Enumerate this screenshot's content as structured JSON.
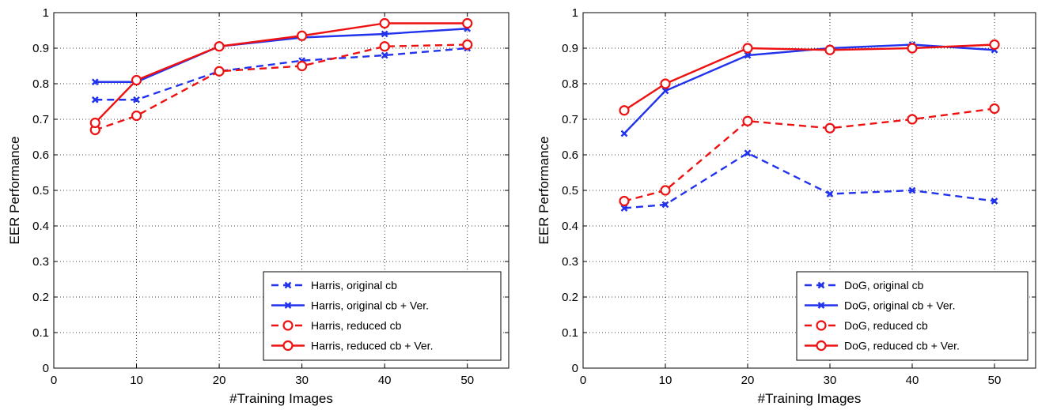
{
  "chart_data": [
    {
      "type": "line",
      "title": "",
      "xlabel": "#Training Images",
      "ylabel": "EER Performance",
      "xlim": [
        0,
        55
      ],
      "ylim": [
        0,
        1
      ],
      "xticks": [
        0,
        10,
        20,
        30,
        40,
        50
      ],
      "yticks": [
        0,
        0.1,
        0.2,
        0.3,
        0.4,
        0.5,
        0.6,
        0.7,
        0.8,
        0.9,
        1
      ],
      "ytick_labels": [
        "0",
        "0.1",
        "0.2",
        "0.3",
        "0.4",
        "0.5",
        "0.6",
        "0.7",
        "0.8",
        "0.9",
        "1"
      ],
      "grid": true,
      "legend_position": "bottom-right",
      "x": [
        5,
        10,
        20,
        30,
        40,
        50
      ],
      "series": [
        {
          "name": "Harris, original cb",
          "values": [
            0.755,
            0.755,
            0.835,
            0.865,
            0.88,
            0.9
          ],
          "color": "#2233ee",
          "dash": true,
          "marker": "x"
        },
        {
          "name": "Harris, original cb + Ver.",
          "values": [
            0.805,
            0.805,
            0.905,
            0.93,
            0.94,
            0.955
          ],
          "color": "#2233ee",
          "dash": false,
          "marker": "x"
        },
        {
          "name": "Harris, reduced cb",
          "values": [
            0.67,
            0.71,
            0.835,
            0.85,
            0.905,
            0.91
          ],
          "color": "#ee1111",
          "dash": true,
          "marker": "o"
        },
        {
          "name": "Harris, reduced cb + Ver.",
          "values": [
            0.69,
            0.81,
            0.905,
            0.935,
            0.97,
            0.97
          ],
          "color": "#ee1111",
          "dash": false,
          "marker": "o"
        }
      ]
    },
    {
      "type": "line",
      "title": "",
      "xlabel": "#Training Images",
      "ylabel": "EER Performance",
      "xlim": [
        0,
        55
      ],
      "ylim": [
        0,
        1
      ],
      "xticks": [
        0,
        10,
        20,
        30,
        40,
        50
      ],
      "yticks": [
        0,
        0.1,
        0.2,
        0.3,
        0.4,
        0.5,
        0.6,
        0.7,
        0.8,
        0.9,
        1
      ],
      "ytick_labels": [
        "0",
        "0.1",
        "0.2",
        "0.3",
        "0.4",
        "0.5",
        "0.6",
        "0.7",
        "0.8",
        "0.9",
        "1"
      ],
      "grid": true,
      "legend_position": "bottom-right",
      "x": [
        5,
        10,
        20,
        30,
        40,
        50
      ],
      "series": [
        {
          "name": "DoG, original cb",
          "values": [
            0.45,
            0.46,
            0.605,
            0.49,
            0.5,
            0.47
          ],
          "color": "#2233ee",
          "dash": true,
          "marker": "x"
        },
        {
          "name": "DoG, original cb + Ver.",
          "values": [
            0.66,
            0.78,
            0.88,
            0.9,
            0.91,
            0.895
          ],
          "color": "#2233ee",
          "dash": false,
          "marker": "x"
        },
        {
          "name": "DoG, reduced cb",
          "values": [
            0.47,
            0.5,
            0.695,
            0.675,
            0.7,
            0.73
          ],
          "color": "#ee1111",
          "dash": true,
          "marker": "o"
        },
        {
          "name": "DoG, reduced cb + Ver.",
          "values": [
            0.725,
            0.8,
            0.9,
            0.895,
            0.9,
            0.91
          ],
          "color": "#ee1111",
          "dash": false,
          "marker": "o"
        }
      ]
    }
  ]
}
